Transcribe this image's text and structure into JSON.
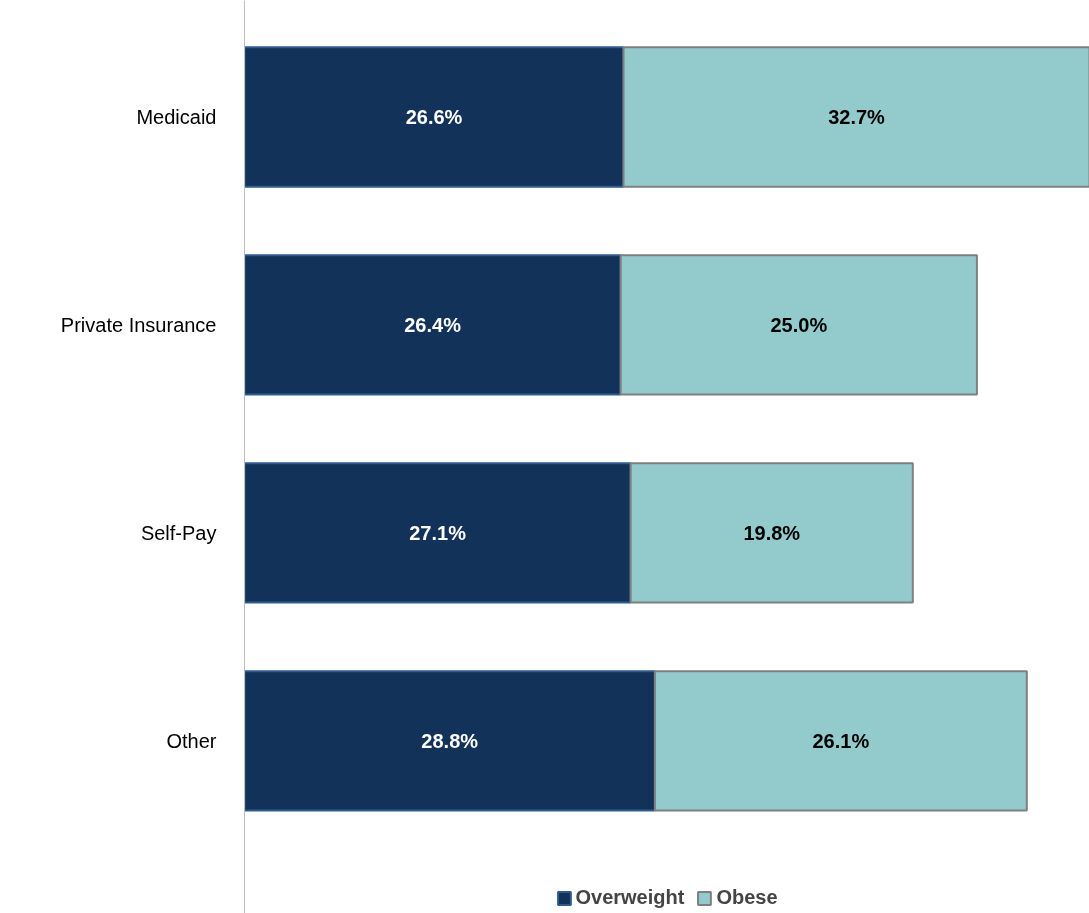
{
  "chart_data": {
    "type": "bar",
    "orientation": "horizontal",
    "stacked": true,
    "categories": [
      "Medicaid",
      "Private Insurance",
      "Self-Pay",
      "Other"
    ],
    "series": [
      {
        "name": "Overweight",
        "color": "#12325a",
        "values": [
          26.6,
          26.4,
          27.1,
          28.8
        ],
        "value_labels": [
          "26.6%",
          "26.4%",
          "27.1%",
          "28.8%"
        ]
      },
      {
        "name": "Obese",
        "color": "#93cbcd",
        "values": [
          32.7,
          25.0,
          19.8,
          26.1
        ],
        "value_labels": [
          "32.7%",
          "25.0%",
          "19.8%",
          "26.1%"
        ]
      }
    ],
    "legend": "bottom",
    "tick_labels": "y",
    "grid": false
  }
}
